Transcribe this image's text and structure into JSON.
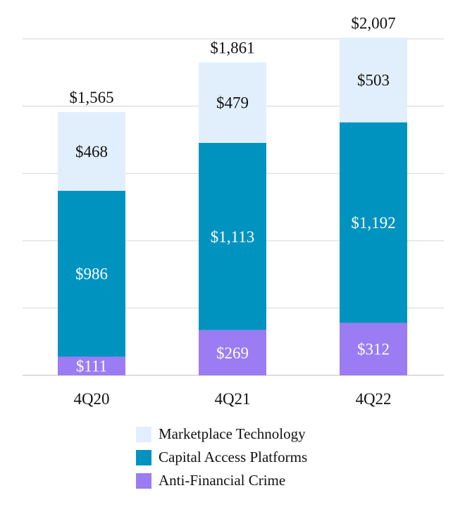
{
  "chart_data": {
    "type": "bar",
    "stacked": true,
    "title": "",
    "xlabel": "",
    "ylabel": "",
    "ylim": [
      0,
      2100
    ],
    "grid": true,
    "legend_position": "bottom",
    "categories": [
      "4Q20",
      "4Q21",
      "4Q22"
    ],
    "series": [
      {
        "key": "afc",
        "name": "Anti-Financial Crime",
        "values": [
          111,
          269,
          312
        ],
        "labels": [
          "$111",
          "$269",
          "$312"
        ],
        "color": "#9b7cf2",
        "label_color": "#ffffff"
      },
      {
        "key": "cap",
        "name": "Capital Access Platforms",
        "values": [
          986,
          1113,
          1192
        ],
        "labels": [
          "$986",
          "$1,113",
          "$1,192"
        ],
        "color": "#0093bf",
        "label_color": "#ffffff"
      },
      {
        "key": "mkt",
        "name": "Marketplace Technology",
        "values": [
          468,
          479,
          503
        ],
        "labels": [
          "$468",
          "$479",
          "$503"
        ],
        "color": "#e1effd",
        "label_color": "#111111"
      }
    ],
    "totals": [
      1565,
      1861,
      2007
    ],
    "total_labels": [
      "$1,565",
      "$1,861",
      "$2,007"
    ],
    "legend_order": [
      "mkt",
      "cap",
      "afc"
    ]
  },
  "colors": {
    "gridline": "#e2e2e2",
    "axis": "#dddddd",
    "text": "#111111"
  }
}
